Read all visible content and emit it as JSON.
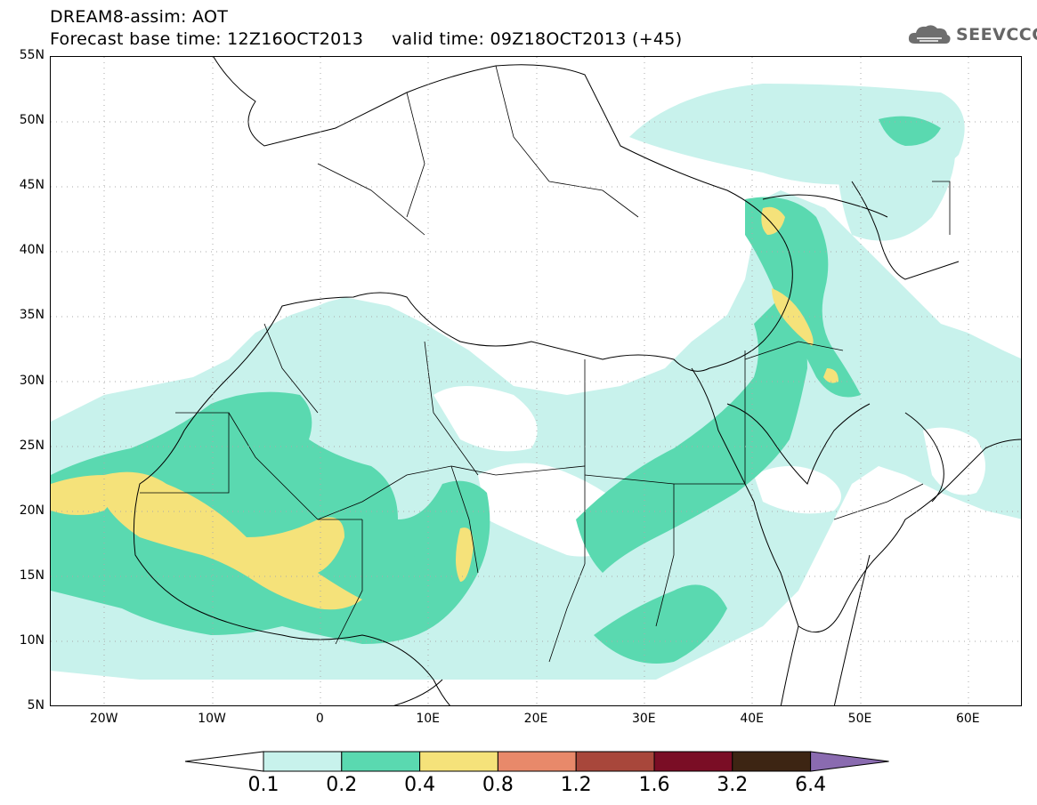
{
  "header": {
    "line1": "DREAM8-assim: AOT",
    "line2": "Forecast base time: 12Z16OCT2013     valid time: 09Z18OCT2013 (+45)",
    "logo_text": "SEEVCCC"
  },
  "map": {
    "lat_labels": [
      "55N",
      "50N",
      "45N",
      "40N",
      "35N",
      "30N",
      "25N",
      "20N",
      "15N",
      "10N",
      "5N"
    ],
    "lon_labels": [
      "20W",
      "10W",
      "0",
      "10E",
      "20E",
      "30E",
      "40E",
      "50E",
      "60E"
    ],
    "lat_range": [
      5,
      55
    ],
    "lon_range": [
      -25,
      65
    ]
  },
  "legend": {
    "levels": [
      "0.1",
      "0.2",
      "0.4",
      "0.8",
      "1.2",
      "1.6",
      "3.2",
      "6.4"
    ],
    "colors": [
      "#ffffff",
      "#c8f2ec",
      "#5ad9b0",
      "#f5e27a",
      "#e8896a",
      "#a8473b",
      "#7a0d25",
      "#3d2513",
      "#8a6bb0"
    ]
  }
}
